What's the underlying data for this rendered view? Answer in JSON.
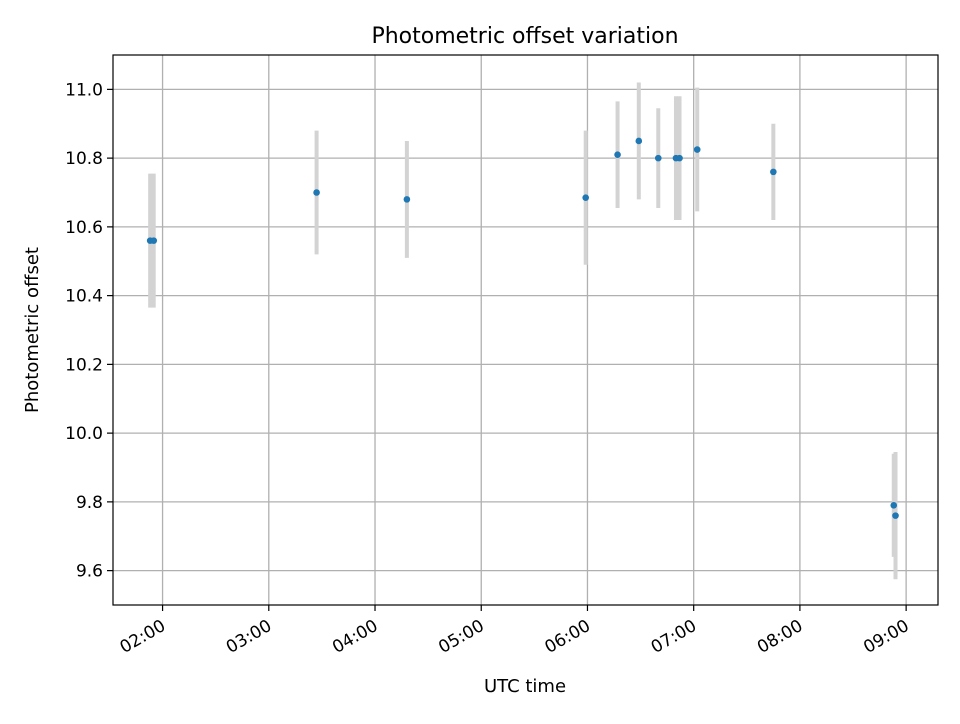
{
  "chart_data": {
    "type": "scatter",
    "title": "Photometric offset variation",
    "xlabel": "UTC time",
    "ylabel": "Photometric offset",
    "x_tick_labels": [
      "02:00",
      "03:00",
      "04:00",
      "05:00",
      "06:00",
      "07:00",
      "08:00",
      "09:00"
    ],
    "y_tick_labels": [
      "9.6",
      "9.8",
      "10.0",
      "10.2",
      "10.4",
      "10.6",
      "10.8",
      "11.0"
    ],
    "xlim": [
      "01:32",
      "09:18"
    ],
    "ylim": [
      9.5,
      11.1
    ],
    "grid": true,
    "x_ticks": [
      "02:00",
      "03:00",
      "04:00",
      "05:00",
      "06:00",
      "07:00",
      "08:00",
      "09:00"
    ],
    "y_ticks": [
      9.6,
      9.8,
      10.0,
      10.2,
      10.4,
      10.6,
      10.8,
      11.0
    ],
    "marker_color": "#1f77b4",
    "errorbar_color": "#d3d3d3",
    "points": [
      {
        "time": "01:53",
        "value": 10.56,
        "err": 0.195
      },
      {
        "time": "01:55",
        "value": 10.56,
        "err": 0.195
      },
      {
        "time": "03:27",
        "value": 10.7,
        "err": 0.18
      },
      {
        "time": "04:18",
        "value": 10.68,
        "err": 0.17
      },
      {
        "time": "05:59",
        "value": 10.685,
        "err": 0.195
      },
      {
        "time": "06:17",
        "value": 10.81,
        "err": 0.155
      },
      {
        "time": "06:29",
        "value": 10.85,
        "err": 0.17
      },
      {
        "time": "06:40",
        "value": 10.8,
        "err": 0.145
      },
      {
        "time": "06:50",
        "value": 10.8,
        "err": 0.18
      },
      {
        "time": "06:52",
        "value": 10.8,
        "err": 0.18
      },
      {
        "time": "07:02",
        "value": 10.825,
        "err": 0.18
      },
      {
        "time": "07:45",
        "value": 10.76,
        "err": 0.14
      },
      {
        "time": "08:53",
        "value": 9.79,
        "err": 0.15
      },
      {
        "time": "08:54",
        "value": 9.76,
        "err": 0.185
      }
    ]
  }
}
